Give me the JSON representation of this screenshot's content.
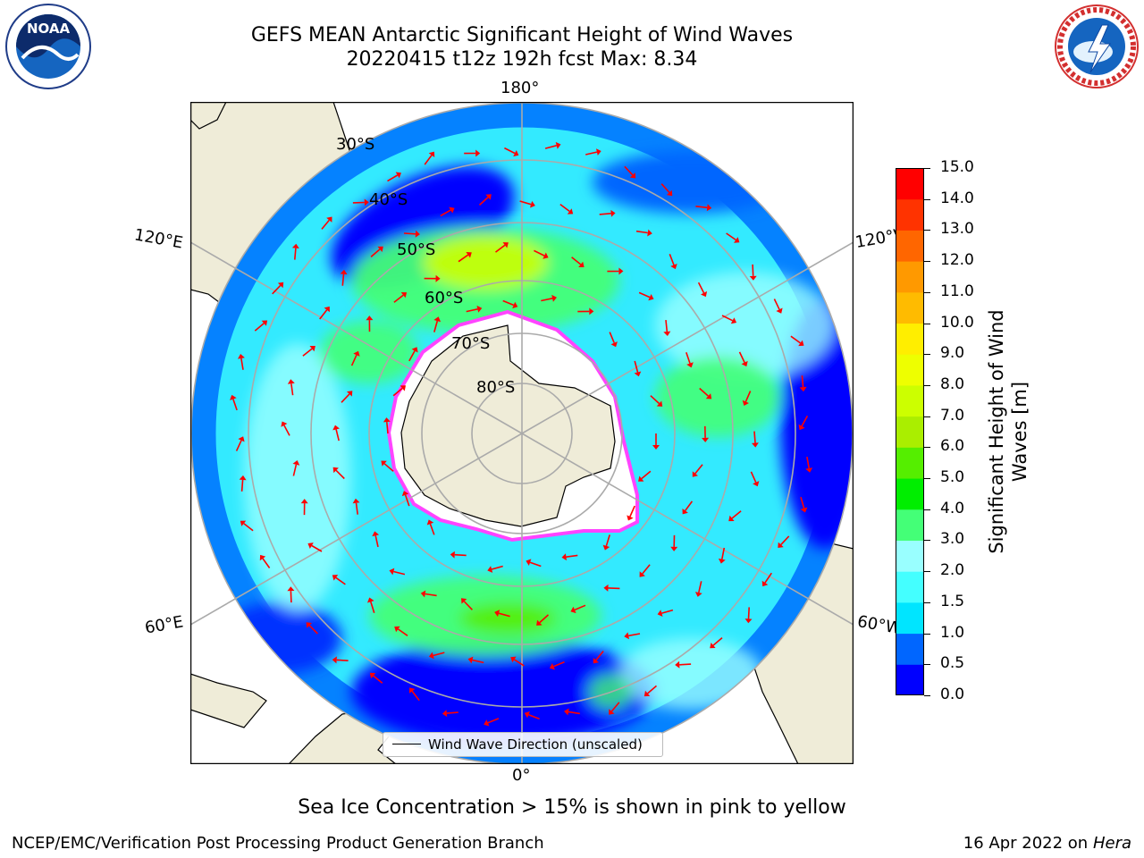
{
  "title": {
    "line1": "GEFS MEAN Antarctic Significant Height of Wind Waves",
    "line2": "20220415 t12z 192h fcst   Max: 8.34"
  },
  "map": {
    "projection": "south polar stereographic",
    "lon_labels": {
      "top": "180°",
      "bottom": "0°",
      "left_upper": "120°E",
      "left_lower": "60°E",
      "right_upper": "120°W",
      "right_lower": "60°W"
    },
    "lat_labels": [
      "30°S",
      "40°S",
      "50°S",
      "60°S",
      "70°S",
      "80°S"
    ],
    "legend": "Wind Wave Direction (unscaled)",
    "colors": {
      "land": "#efecd8",
      "ocean_low": "#0000ff",
      "ice_edge": "#ff33ff",
      "vectors": "#ff0000"
    }
  },
  "colorbar": {
    "label": "Significant Height of Wind Waves [m]",
    "ticks": [
      "0.0",
      "0.5",
      "1.0",
      "1.5",
      "2.0",
      "3.0",
      "4.0",
      "5.0",
      "6.0",
      "7.0",
      "8.0",
      "9.0",
      "10.0",
      "11.0",
      "12.0",
      "13.0",
      "14.0",
      "15.0"
    ],
    "colors": [
      "#0000ff",
      "#0066ff",
      "#00e5ff",
      "#44ffff",
      "#99ffff",
      "#44ff77",
      "#00ee00",
      "#55ee00",
      "#aaee00",
      "#ccff00",
      "#eeff00",
      "#ffee00",
      "#ffbb00",
      "#ff9900",
      "#ff6600",
      "#ff3300",
      "#ff0000"
    ]
  },
  "footer": {
    "ice_note": "Sea Ice Concentration > 15% is shown in pink to yellow",
    "branch": "NCEP/EMC/Verification Post Processing Product Generation Branch",
    "date": "16 Apr 2022 on ",
    "machine": "Hera"
  },
  "logos": {
    "noaa_text": "NOAA",
    "nws_text": "NATIONAL WEATHER SERVICE"
  }
}
